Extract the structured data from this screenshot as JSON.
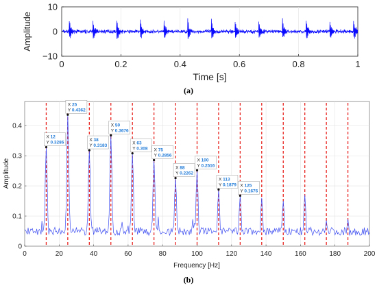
{
  "colors": {
    "signal": "#0a0aff",
    "spectrum": "#3c4cf0",
    "harmonic_line": "#e8231f",
    "datatip_value": "#1f7ad8",
    "grid": "#e2e2e2"
  },
  "chart_data": [
    {
      "type": "line",
      "panel_label": "(a)",
      "xlabel": "Time [s]",
      "ylabel": "Amplitude",
      "xlim": [
        0,
        1
      ],
      "ylim": [
        -10,
        10
      ],
      "xticks": [
        0,
        0.2,
        0.4,
        0.6,
        0.8,
        1
      ],
      "xtick_labels": [
        "0",
        "0.2",
        "0.4",
        "0.6",
        "0.8",
        "1"
      ],
      "yticks": [
        -10,
        0,
        10
      ],
      "ytick_labels": [
        "−10",
        "0",
        "10"
      ],
      "grid": true,
      "signal": {
        "impulse_period_s": 0.08,
        "first_impulse_s": 0.025,
        "impulse_peak": 6,
        "background_amplitude": 1
      }
    },
    {
      "type": "line",
      "panel_label": "(b)",
      "xlabel": "Frequency [Hz]",
      "ylabel": "Amplitude",
      "xlim": [
        0,
        200
      ],
      "ylim": [
        0,
        0.48
      ],
      "xticks": [
        0,
        20,
        40,
        60,
        80,
        100,
        120,
        140,
        160,
        180,
        200
      ],
      "xtick_labels": [
        "0",
        "20",
        "40",
        "60",
        "80",
        "100",
        "120",
        "140",
        "160",
        "180",
        "200"
      ],
      "yticks": [
        0,
        0.1,
        0.2,
        0.3,
        0.4
      ],
      "ytick_labels": [
        "0",
        "0.1",
        "0.2",
        "0.3",
        "0.4"
      ],
      "grid": true,
      "harmonic_lines": [
        12.5,
        25,
        37.5,
        50,
        62.5,
        75,
        87.5,
        100,
        112.5,
        125,
        137.5,
        150,
        162.5,
        175,
        187.5
      ],
      "peaks": [
        {
          "x": 12.5,
          "y": 0.3286
        },
        {
          "x": 25,
          "y": 0.4362
        },
        {
          "x": 37.5,
          "y": 0.3183
        },
        {
          "x": 50,
          "y": 0.3676
        },
        {
          "x": 62.5,
          "y": 0.308
        },
        {
          "x": 75,
          "y": 0.2856
        },
        {
          "x": 87.5,
          "y": 0.2262
        },
        {
          "x": 100,
          "y": 0.2516
        },
        {
          "x": 112.5,
          "y": 0.1879
        },
        {
          "x": 125,
          "y": 0.1676
        },
        {
          "x": 137.5,
          "y": 0.16
        },
        {
          "x": 150,
          "y": 0.15
        },
        {
          "x": 162.5,
          "y": 0.17
        },
        {
          "x": 175,
          "y": 0.085
        },
        {
          "x": 187.5,
          "y": 0.09
        }
      ],
      "datatips": [
        {
          "x_label": "12",
          "y_label": "0.3286",
          "x": 12.5,
          "y": 0.3286
        },
        {
          "x_label": "25",
          "y_label": "0.4362",
          "x": 25,
          "y": 0.4362
        },
        {
          "x_label": "38",
          "y_label": "0.3183",
          "x": 37.5,
          "y": 0.3183
        },
        {
          "x_label": "50",
          "y_label": "0.3676",
          "x": 50,
          "y": 0.3676
        },
        {
          "x_label": "63",
          "y_label": "0.308",
          "x": 62.5,
          "y": 0.308
        },
        {
          "x_label": "75",
          "y_label": "0.2856",
          "x": 75,
          "y": 0.2856
        },
        {
          "x_label": "88",
          "y_label": "0.2262",
          "x": 87.5,
          "y": 0.2262
        },
        {
          "x_label": "100",
          "y_label": "0.2516",
          "x": 100,
          "y": 0.2516
        },
        {
          "x_label": "113",
          "y_label": "0.1879",
          "x": 112.5,
          "y": 0.1879
        },
        {
          "x_label": "125",
          "y_label": "0.1676",
          "x": 125,
          "y": 0.1676
        }
      ]
    }
  ]
}
